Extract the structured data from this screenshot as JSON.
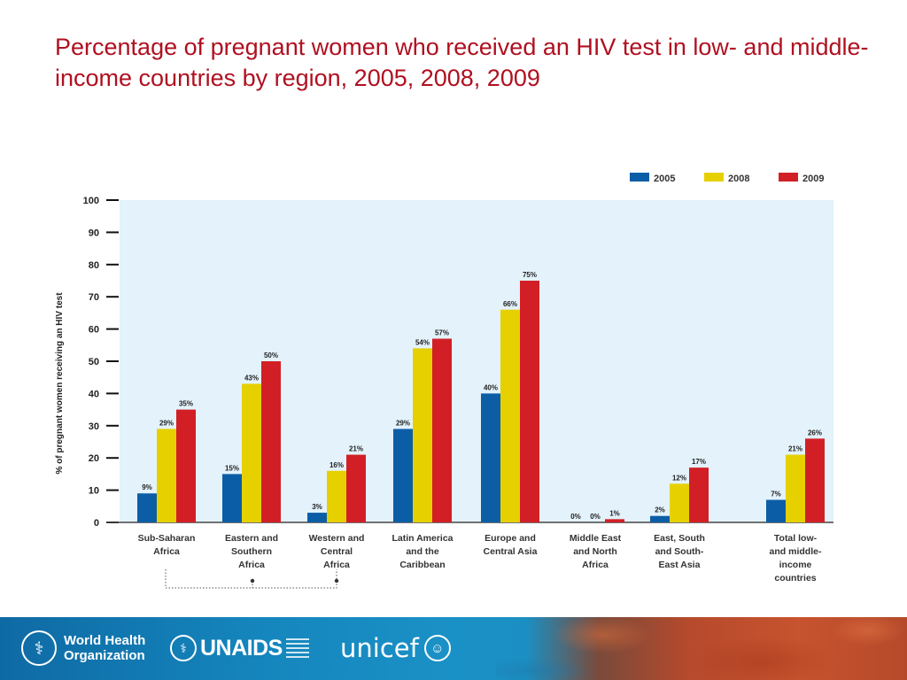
{
  "title": "Percentage of pregnant women who received an HIV test in low- and middle-income countries by region, 2005, 2008, 2009",
  "chart_data": {
    "type": "bar",
    "title": "Percentage of pregnant women who received an HIV test in low- and middle-income countries by region, 2005, 2008, 2009",
    "xlabel": "",
    "ylabel": "% of pregnant women receiving an HIV test",
    "ylim": [
      0,
      100
    ],
    "yticks": [
      0,
      10,
      20,
      30,
      40,
      50,
      60,
      70,
      80,
      90,
      100
    ],
    "grid": false,
    "legend": "top-right",
    "categories": [
      [
        "Sub-Saharan",
        "Africa"
      ],
      [
        "Eastern and",
        "Southern",
        "Africa"
      ],
      [
        "Western and",
        "Central",
        "Africa"
      ],
      [
        "Latin America",
        "and the",
        "Caribbean"
      ],
      [
        "Europe and",
        "Central Asia"
      ],
      [
        "Middle East",
        "and North",
        "Africa"
      ],
      [
        "East, South",
        "and South-",
        "East Asia"
      ],
      [
        "Total low-",
        "and middle-",
        "income",
        "countries"
      ]
    ],
    "series": [
      {
        "name": "2005",
        "color": "#0b5ea6",
        "values": [
          9,
          15,
          3,
          29,
          40,
          0,
          2,
          7
        ],
        "labels": [
          "9%",
          "15%",
          "3%",
          "29%",
          "40%",
          "0%",
          "2%",
          "7%"
        ]
      },
      {
        "name": "2008",
        "color": "#e6d000",
        "values": [
          29,
          43,
          16,
          54,
          66,
          0,
          12,
          21
        ],
        "labels": [
          "29%",
          "43%",
          "16%",
          "54%",
          "66%",
          "0%",
          "12%",
          "21%"
        ]
      },
      {
        "name": "2009",
        "color": "#d21f26",
        "values": [
          35,
          50,
          21,
          57,
          75,
          1,
          17,
          26
        ],
        "labels": [
          "35%",
          "50%",
          "21%",
          "57%",
          "75%",
          "1%",
          "17%",
          "26%"
        ]
      }
    ],
    "plot_background": "#e3f2fb"
  },
  "footer": {
    "who": [
      "World Health",
      "Organization"
    ],
    "unaids": "UNAIDS",
    "unicef": "unicef"
  }
}
